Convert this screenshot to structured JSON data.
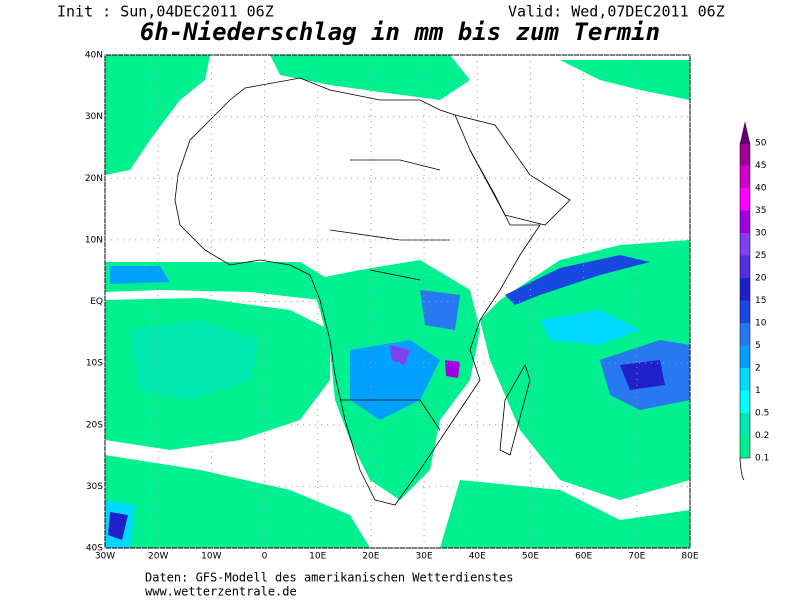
{
  "header": {
    "init": "Init : Sun,04DEC2011 06Z",
    "valid": "Valid: Wed,07DEC2011 06Z",
    "title": "6h-Niederschlag in mm bis zum Termin"
  },
  "map": {
    "lon_range": [
      -30,
      80
    ],
    "lat_range": [
      40,
      -40
    ],
    "lon_ticks": [
      {
        "value": -30,
        "label": "30W"
      },
      {
        "value": -20,
        "label": "20W"
      },
      {
        "value": -10,
        "label": "10W"
      },
      {
        "value": 0,
        "label": "0"
      },
      {
        "value": 10,
        "label": "10E"
      },
      {
        "value": 20,
        "label": "20E"
      },
      {
        "value": 30,
        "label": "30E"
      },
      {
        "value": 40,
        "label": "40E"
      },
      {
        "value": 50,
        "label": "50E"
      },
      {
        "value": 60,
        "label": "60E"
      },
      {
        "value": 70,
        "label": "70E"
      },
      {
        "value": 80,
        "label": "80E"
      }
    ],
    "lat_ticks": [
      {
        "value": 40,
        "label": "40N"
      },
      {
        "value": 30,
        "label": "30N"
      },
      {
        "value": 20,
        "label": "20N"
      },
      {
        "value": 10,
        "label": "10N"
      },
      {
        "value": 0,
        "label": "EQ"
      },
      {
        "value": -10,
        "label": "10S"
      },
      {
        "value": -20,
        "label": "20S"
      },
      {
        "value": -30,
        "label": "30S"
      },
      {
        "value": -40,
        "label": "40S"
      }
    ]
  },
  "legend": {
    "levels": [
      0.1,
      0.2,
      0.5,
      1,
      2,
      5,
      10,
      15,
      20,
      25,
      30,
      35,
      40,
      45,
      50
    ],
    "colors": [
      "#00f090",
      "#00e8b0",
      "#00ffff",
      "#00d8ff",
      "#00a0ff",
      "#2878f0",
      "#1848e0",
      "#2020c8",
      "#5030e0",
      "#8040f0",
      "#a000e0",
      "#ff00ff",
      "#d000c8",
      "#a00098",
      "#600070"
    ]
  },
  "footer": {
    "source": "Daten: GFS-Modell des amerikanischen Wetterdienstes",
    "url": "www.wetterzentrale.de"
  }
}
